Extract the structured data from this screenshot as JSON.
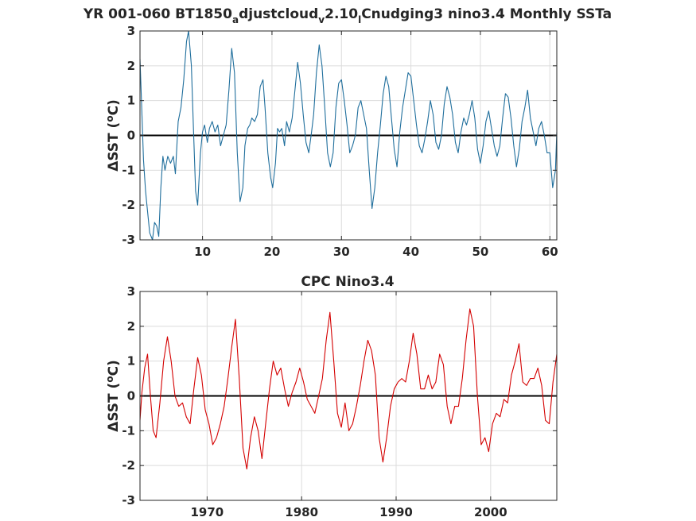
{
  "figure": {
    "background": "#ffffff"
  },
  "chart_data": [
    {
      "type": "line",
      "title_segments": [
        {
          "text": "YR 001-060 BT1850",
          "sub": false
        },
        {
          "text": "a",
          "sub": true
        },
        {
          "text": "djustcloud",
          "sub": false
        },
        {
          "text": "v",
          "sub": true
        },
        {
          "text": "2.10",
          "sub": false
        },
        {
          "text": "l",
          "sub": true
        },
        {
          "text": "Cnudging3 nino3.4 Monthly SSTa",
          "sub": false
        }
      ],
      "xlabel": "",
      "ylabel_main": "ΔSST (",
      "ylabel_sup": "o",
      "ylabel_end": "C)",
      "xlim": [
        1,
        61
      ],
      "ylim": [
        -3,
        3
      ],
      "xticks": [
        10,
        20,
        30,
        40,
        50,
        60
      ],
      "yticks": [
        -3,
        -2,
        -1,
        0,
        1,
        2,
        3
      ],
      "grid": true,
      "zero_line": true,
      "line_color": "#1f6e9c",
      "series": [
        {
          "x": [
            1.0,
            1.2,
            1.5,
            1.8,
            2.0,
            2.4,
            2.8,
            3.1,
            3.4,
            3.7,
            4.0,
            4.3,
            4.6,
            5.0,
            5.4,
            5.8,
            6.1,
            6.5,
            6.9,
            7.3,
            7.7,
            8.0,
            8.4,
            8.7,
            9.0,
            9.3,
            9.7,
            10.0,
            10.3,
            10.7,
            11.0,
            11.4,
            11.8,
            12.2,
            12.6,
            13.0,
            13.4,
            13.8,
            14.2,
            14.6,
            15.0,
            15.4,
            15.8,
            16.1,
            16.5,
            16.8,
            17.1,
            17.5,
            17.9,
            18.3,
            18.7,
            19.0,
            19.4,
            19.8,
            20.1,
            20.5,
            20.8,
            21.1,
            21.4,
            21.8,
            22.1,
            22.5,
            22.9,
            23.3,
            23.7,
            24.1,
            24.5,
            24.9,
            25.3,
            25.7,
            26.0,
            26.4,
            26.8,
            27.2,
            27.6,
            28.0,
            28.4,
            28.8,
            29.2,
            29.6,
            30.0,
            30.4,
            30.8,
            31.2,
            31.6,
            32.0,
            32.4,
            32.8,
            33.2,
            33.6,
            34.0,
            34.4,
            34.8,
            35.2,
            35.6,
            36.0,
            36.4,
            36.8,
            37.2,
            37.6,
            38.0,
            38.4,
            38.8,
            39.2,
            39.6,
            40.0,
            40.4,
            40.8,
            41.2,
            41.6,
            42.0,
            42.4,
            42.8,
            43.2,
            43.6,
            44.0,
            44.4,
            44.8,
            45.2,
            45.6,
            46.0,
            46.4,
            46.8,
            47.2,
            47.6,
            48.0,
            48.4,
            48.8,
            49.2,
            49.6,
            50.0,
            50.4,
            50.8,
            51.2,
            51.6,
            52.0,
            52.4,
            52.8,
            53.2,
            53.6,
            54.0,
            54.4,
            54.8,
            55.2,
            55.6,
            56.0,
            56.4,
            56.8,
            57.2,
            57.6,
            58.0,
            58.4,
            58.8,
            59.2,
            59.6,
            60.0,
            60.4,
            60.8,
            61.0
          ],
          "y": [
            2.2,
            1.1,
            -0.7,
            -1.6,
            -2.0,
            -2.8,
            -3.0,
            -2.5,
            -2.6,
            -2.9,
            -1.5,
            -0.6,
            -1.0,
            -0.6,
            -0.8,
            -0.6,
            -1.1,
            0.4,
            0.8,
            1.6,
            2.7,
            3.0,
            2.0,
            0.2,
            -1.6,
            -2.0,
            -0.5,
            0.1,
            0.3,
            -0.2,
            0.2,
            0.4,
            0.1,
            0.3,
            -0.3,
            0.0,
            0.3,
            1.3,
            2.5,
            1.8,
            -0.5,
            -1.9,
            -1.5,
            -0.3,
            0.2,
            0.3,
            0.5,
            0.4,
            0.6,
            1.4,
            1.6,
            0.8,
            -0.5,
            -1.2,
            -1.5,
            -0.8,
            0.2,
            0.1,
            0.2,
            -0.3,
            0.4,
            0.1,
            0.5,
            1.3,
            2.1,
            1.5,
            0.6,
            -0.2,
            -0.5,
            0.1,
            0.6,
            1.8,
            2.6,
            2.0,
            0.8,
            -0.5,
            -0.9,
            -0.5,
            0.8,
            1.5,
            1.6,
            1.0,
            0.3,
            -0.5,
            -0.3,
            0.0,
            0.8,
            1.0,
            0.6,
            0.2,
            -1.0,
            -2.1,
            -1.5,
            -0.5,
            0.3,
            1.2,
            1.7,
            1.4,
            0.5,
            -0.4,
            -0.9,
            0.1,
            0.8,
            1.3,
            1.8,
            1.7,
            1.0,
            0.3,
            -0.3,
            -0.5,
            -0.1,
            0.4,
            1.0,
            0.6,
            -0.2,
            -0.4,
            0.0,
            0.9,
            1.4,
            1.1,
            0.6,
            -0.2,
            -0.5,
            0.1,
            0.5,
            0.3,
            0.6,
            1.0,
            0.5,
            -0.4,
            -0.8,
            -0.3,
            0.4,
            0.7,
            0.2,
            -0.3,
            -0.6,
            -0.3,
            0.5,
            1.2,
            1.1,
            0.5,
            -0.3,
            -0.9,
            -0.4,
            0.4,
            0.8,
            1.3,
            0.5,
            0.1,
            -0.3,
            0.2,
            0.4,
            0.0,
            -0.5,
            -0.5,
            -1.5,
            -1.0,
            0.1
          ]
        }
      ]
    },
    {
      "type": "line",
      "title": "CPC Nino3.4",
      "xlabel": "",
      "ylabel_main": "ΔSST (",
      "ylabel_sup": "o",
      "ylabel_end": "C)",
      "xlim": [
        1962.9,
        2007.0
      ],
      "ylim": [
        -3,
        3
      ],
      "xticks": [
        1970,
        1980,
        1990,
        2000
      ],
      "yticks": [
        -3,
        -2,
        -1,
        0,
        1,
        2,
        3
      ],
      "grid": true,
      "zero_line": true,
      "line_color": "#d40000",
      "series": [
        {
          "x": [
            1962.9,
            1963.1,
            1963.4,
            1963.7,
            1964.0,
            1964.3,
            1964.6,
            1965.0,
            1965.4,
            1965.8,
            1966.2,
            1966.6,
            1967.0,
            1967.4,
            1967.8,
            1968.2,
            1968.6,
            1969.0,
            1969.4,
            1969.8,
            1970.2,
            1970.6,
            1971.0,
            1971.4,
            1971.8,
            1972.2,
            1972.6,
            1973.0,
            1973.4,
            1973.8,
            1974.2,
            1974.6,
            1975.0,
            1975.4,
            1975.8,
            1976.2,
            1976.6,
            1977.0,
            1977.4,
            1977.8,
            1978.2,
            1978.6,
            1979.0,
            1979.4,
            1979.8,
            1980.2,
            1980.6,
            1981.0,
            1981.4,
            1981.8,
            1982.2,
            1982.6,
            1983.0,
            1983.4,
            1983.8,
            1984.2,
            1984.6,
            1985.0,
            1985.4,
            1985.8,
            1986.2,
            1986.6,
            1987.0,
            1987.4,
            1987.8,
            1988.2,
            1988.6,
            1989.0,
            1989.4,
            1989.8,
            1990.2,
            1990.6,
            1991.0,
            1991.4,
            1991.8,
            1992.2,
            1992.6,
            1993.0,
            1993.4,
            1993.8,
            1994.2,
            1994.6,
            1995.0,
            1995.4,
            1995.8,
            1996.2,
            1996.6,
            1997.0,
            1997.4,
            1997.8,
            1998.2,
            1998.6,
            1999.0,
            1999.4,
            1999.8,
            2000.2,
            2000.6,
            2001.0,
            2001.4,
            2001.8,
            2002.2,
            2002.6,
            2003.0,
            2003.4,
            2003.8,
            2004.2,
            2004.6,
            2005.0,
            2005.4,
            2005.8,
            2006.2,
            2006.6,
            2007.0
          ],
          "y": [
            -0.7,
            0.1,
            0.8,
            1.2,
            0.0,
            -1.0,
            -1.2,
            -0.2,
            1.0,
            1.7,
            1.0,
            0.0,
            -0.3,
            -0.2,
            -0.6,
            -0.8,
            0.2,
            1.1,
            0.6,
            -0.4,
            -0.8,
            -1.4,
            -1.2,
            -0.8,
            -0.3,
            0.5,
            1.4,
            2.2,
            0.5,
            -1.5,
            -2.1,
            -1.2,
            -0.6,
            -1.0,
            -1.8,
            -0.8,
            0.2,
            1.0,
            0.6,
            0.8,
            0.2,
            -0.3,
            0.1,
            0.4,
            0.8,
            0.4,
            -0.1,
            -0.3,
            -0.5,
            0.0,
            0.5,
            1.6,
            2.4,
            1.0,
            -0.5,
            -0.9,
            -0.2,
            -1.0,
            -0.8,
            -0.3,
            0.3,
            1.0,
            1.6,
            1.3,
            0.6,
            -1.2,
            -1.9,
            -1.2,
            -0.3,
            0.2,
            0.4,
            0.5,
            0.4,
            1.0,
            1.8,
            1.2,
            0.2,
            0.2,
            0.6,
            0.2,
            0.4,
            1.2,
            0.9,
            -0.3,
            -0.8,
            -0.3,
            -0.3,
            0.5,
            1.6,
            2.5,
            2.0,
            0.0,
            -1.4,
            -1.2,
            -1.6,
            -0.8,
            -0.5,
            -0.6,
            -0.1,
            -0.2,
            0.6,
            1.0,
            1.5,
            0.4,
            0.3,
            0.5,
            0.5,
            0.8,
            0.3,
            -0.7,
            -0.8,
            0.4,
            1.2
          ]
        }
      ]
    }
  ]
}
